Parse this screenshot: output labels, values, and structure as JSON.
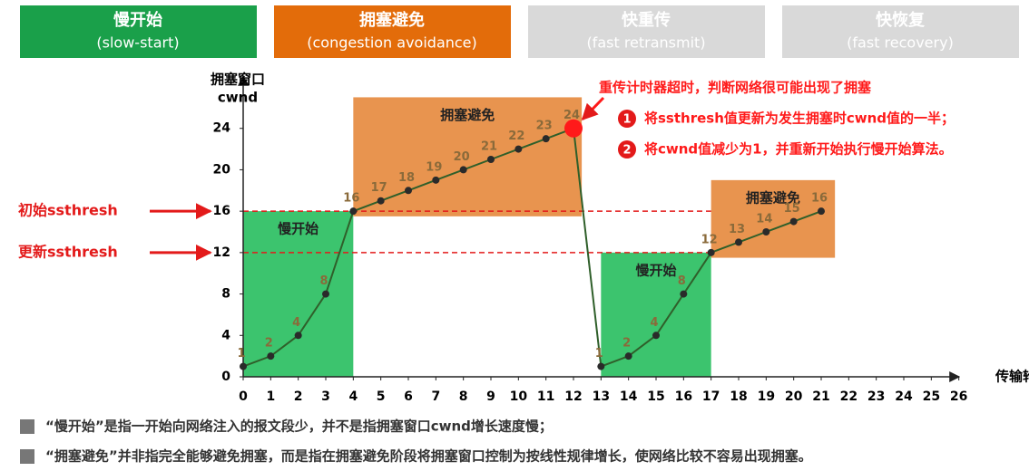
{
  "header": {
    "tabs": [
      {
        "title": "慢开始",
        "subtitle": "(slow-start)",
        "color": "#1aa04a"
      },
      {
        "title": "拥塞避免",
        "subtitle": "(congestion avoidance)",
        "color": "#e36c0a"
      },
      {
        "title": "快重传",
        "subtitle": "(fast retransmit)",
        "color": "#d9d9d9"
      },
      {
        "title": "快恢复",
        "subtitle": "(fast recovery)",
        "color": "#d9d9d9"
      }
    ]
  },
  "chart_data": {
    "type": "line",
    "ylabel_lines": [
      "拥塞窗口",
      "cwnd"
    ],
    "xlabel": "传输轮次",
    "x": [
      0,
      1,
      2,
      3,
      4,
      5,
      6,
      7,
      8,
      9,
      10,
      11,
      12,
      13,
      14,
      15,
      16,
      17,
      18,
      19,
      20,
      21
    ],
    "series": [
      {
        "name": "cwnd",
        "color": "#2f5f2a",
        "label_color": "#8a6a3a",
        "values": [
          1,
          2,
          4,
          8,
          16,
          17,
          18,
          19,
          20,
          21,
          22,
          23,
          24,
          1,
          2,
          4,
          8,
          12,
          13,
          14,
          15,
          16
        ]
      }
    ],
    "xlim": [
      0,
      27
    ],
    "ylim": [
      0,
      28
    ],
    "xticks": [
      0,
      1,
      2,
      3,
      4,
      5,
      6,
      7,
      8,
      9,
      10,
      11,
      12,
      13,
      14,
      15,
      16,
      17,
      18,
      19,
      20,
      21,
      22,
      23,
      24,
      25,
      26
    ],
    "yticks": [
      0,
      4,
      8,
      12,
      16,
      20,
      24
    ],
    "regions": [
      {
        "label": "慢开始",
        "color": "#3cc46e",
        "x": [
          0,
          4
        ],
        "y": [
          0,
          16
        ]
      },
      {
        "label": "拥塞避免",
        "color": "#e8944f",
        "x": [
          4,
          12.3
        ],
        "y": [
          15.5,
          27
        ]
      },
      {
        "label": "慢开始",
        "color": "#3cc46e",
        "x": [
          13,
          17
        ],
        "y": [
          0,
          12
        ]
      },
      {
        "label": "拥塞避免",
        "color": "#e8944f",
        "x": [
          17,
          21.5
        ],
        "y": [
          11.5,
          19
        ]
      }
    ],
    "thresholds": [
      {
        "label": "初始ssthresh",
        "value": 16,
        "color": "#e31a1a"
      },
      {
        "label": "更新ssthresh",
        "value": 12,
        "color": "#e31a1a"
      }
    ],
    "event": {
      "x": 12,
      "y": 24,
      "color": "#ff1a1a",
      "title": "重传计时器超时，判断网络很可能出现了拥塞",
      "items": [
        {
          "number": "1",
          "text": "将ssthresh值更新为发生拥塞时cwnd值的一半；"
        },
        {
          "number": "2",
          "text": "将cwnd值减少为1，并重新开始执行慢开始算法。"
        }
      ]
    }
  },
  "notes": [
    "“慢开始”是指一开始向网络注入的报文段少，并不是指拥塞窗口cwnd增长速度慢；",
    "“拥塞避免”并非指完全能够避免拥塞，而是指在拥塞避免阶段将拥塞窗口控制为按线性规律增长，使网络比较不容易出现拥塞。"
  ]
}
